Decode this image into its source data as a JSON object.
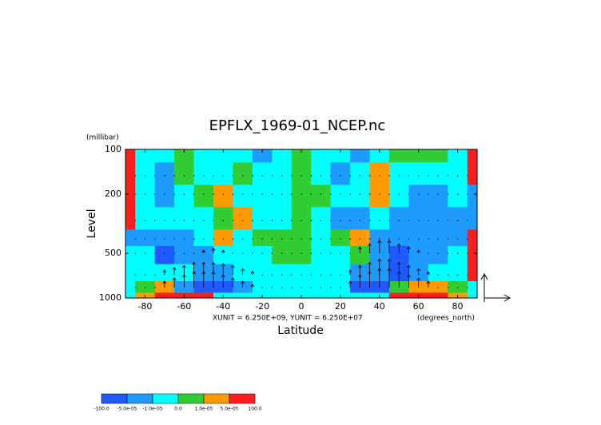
{
  "chart_data": {
    "type": "contour",
    "title": "EPFLX_1969-01_NCEP.nc",
    "x_label": "Latitude",
    "y_label": "Level",
    "y_units": "(millibar)",
    "x_units": "(degrees_north)",
    "annotation": "XUNIT = 6.250E+09, YUNIT = 6.250E+07",
    "xlim": [
      -90,
      90
    ],
    "ylim": [
      1000,
      100
    ],
    "y_log": true,
    "xticks": [
      -80,
      -60,
      -40,
      -20,
      0,
      20,
      40,
      60,
      80
    ],
    "yticks": [
      100,
      200,
      500,
      1000
    ],
    "x": [
      -90,
      -80,
      -70,
      -60,
      -50,
      -40,
      -30,
      -20,
      -10,
      0,
      10,
      20,
      30,
      40,
      50,
      60,
      70,
      80,
      90
    ],
    "y": [
      100,
      150,
      200,
      300,
      400,
      500,
      700,
      850,
      1000
    ],
    "z": [
      [
        7e-05,
        -5e-06,
        -5e-06,
        5e-06,
        -5e-06,
        -5e-06,
        -5e-06,
        -3e-05,
        -5e-06,
        5e-06,
        -5e-06,
        -5e-06,
        -3e-05,
        -5e-06,
        5e-06,
        5e-06,
        5e-06,
        -5e-06,
        7e-05
      ],
      [
        7e-05,
        -5e-06,
        -3e-05,
        5e-06,
        -5e-06,
        -5e-06,
        5e-06,
        -5e-06,
        -5e-06,
        5e-06,
        -5e-06,
        -3e-05,
        -5e-06,
        3e-05,
        -5e-06,
        -5e-06,
        -5e-06,
        -5e-06,
        7e-05
      ],
      [
        7e-05,
        -5e-06,
        -3e-05,
        -5e-06,
        5e-06,
        3e-05,
        -5e-06,
        -5e-06,
        -5e-06,
        5e-06,
        5e-06,
        -5e-06,
        -5e-06,
        3e-05,
        -5e-06,
        -3e-05,
        -3e-05,
        -5e-06,
        -3e-05
      ],
      [
        7e-05,
        -5e-06,
        -5e-06,
        -5e-06,
        -5e-06,
        5e-06,
        3e-05,
        -5e-06,
        -5e-06,
        5e-06,
        -5e-06,
        -3e-05,
        -3e-05,
        -5e-06,
        -3e-05,
        -3e-05,
        -3e-05,
        -3e-05,
        -3e-05
      ],
      [
        -3e-05,
        -3e-05,
        -3e-05,
        -3e-05,
        -5e-06,
        3e-05,
        -5e-06,
        5e-06,
        5e-06,
        5e-06,
        -5e-06,
        5e-06,
        3e-05,
        -3e-05,
        -3e-05,
        -3e-05,
        -3e-05,
        -3e-05,
        7e-05
      ],
      [
        -5e-06,
        -5e-06,
        -7e-05,
        -3e-05,
        -3e-05,
        -5e-06,
        -5e-06,
        -5e-06,
        5e-06,
        5e-06,
        -5e-06,
        -5e-06,
        5e-06,
        -3e-05,
        -7e-05,
        -3e-05,
        -3e-05,
        -5e-06,
        7e-05
      ],
      [
        -5e-06,
        -5e-06,
        -5e-06,
        -5e-06,
        -3e-05,
        -3e-05,
        -5e-06,
        -5e-06,
        -5e-06,
        -5e-06,
        -5e-06,
        -5e-06,
        -3e-05,
        -3e-05,
        -7e-05,
        -3e-05,
        -5e-06,
        -5e-06,
        7e-05
      ],
      [
        -5e-06,
        5e-06,
        3e-05,
        -3e-05,
        -7e-05,
        -7e-05,
        -3e-05,
        -5e-06,
        -5e-06,
        -5e-06,
        -5e-06,
        -5e-06,
        -7e-05,
        -7e-05,
        5e-06,
        3e-05,
        3e-05,
        5e-06,
        -5e-06
      ],
      [
        -5e-06,
        3e-05,
        7e-05,
        7e-05,
        7e-05,
        -5e-06,
        -5e-06,
        -5e-06,
        -5e-06,
        -5e-06,
        -5e-06,
        -5e-06,
        -5e-06,
        -5e-06,
        7e-05,
        7e-05,
        7e-05,
        3e-05,
        -5e-06
      ]
    ],
    "levels": [
      {
        "value": -100,
        "label": "-100.0"
      },
      {
        "value": -5e-05,
        "label": "-5.0e-05"
      },
      {
        "value": -1e-05,
        "label": "-1.0e-05"
      },
      {
        "value": 0,
        "label": "0.0"
      },
      {
        "value": 1e-05,
        "label": "1.0e-05"
      },
      {
        "value": 5e-05,
        "label": "5.0e-05"
      },
      {
        "value": 100,
        "label": "100.0"
      }
    ],
    "colors": [
      "#1e5aff",
      "#1e9bff",
      "#00ffff",
      "#32cd32",
      "#ff9b00",
      "#ff1e1e"
    ],
    "vectors": {
      "x": [
        -85,
        -80,
        -75,
        -70,
        -65,
        -60,
        -55,
        -50,
        -45,
        -40,
        -35,
        -30,
        -25,
        -20,
        -15,
        -10,
        -5,
        0,
        5,
        10,
        15,
        20,
        25,
        30,
        35,
        40,
        45,
        50,
        55,
        60,
        65,
        70,
        75,
        80,
        85
      ],
      "y": [
        100,
        150,
        200,
        300,
        400,
        500,
        700,
        850
      ],
      "v": [
        [
          0,
          0,
          0,
          0,
          0,
          0,
          0,
          0,
          0,
          0,
          0,
          0,
          0,
          0,
          0,
          0,
          0,
          0,
          0,
          0,
          0,
          0,
          0,
          0,
          0,
          0,
          0,
          0,
          0,
          0,
          0,
          0,
          0,
          0,
          0
        ],
        [
          0,
          0,
          0,
          0,
          0,
          0,
          0,
          0,
          0,
          0,
          0,
          0,
          0,
          0,
          0,
          0,
          0,
          0,
          0,
          0,
          0,
          0,
          0,
          0,
          0,
          0,
          0,
          0,
          0,
          0,
          0,
          0,
          0,
          0,
          0
        ],
        [
          0,
          0,
          0,
          0,
          0,
          0,
          0,
          0,
          0,
          0,
          0,
          0,
          0,
          0,
          0,
          0,
          0,
          0,
          0,
          0,
          0,
          0,
          0,
          0,
          0,
          0,
          0,
          0,
          0,
          0,
          0,
          0,
          0,
          0,
          0
        ],
        [
          0,
          0,
          0,
          0,
          0,
          0,
          0,
          0,
          0,
          0,
          0,
          0,
          0,
          0,
          0,
          0,
          0,
          0,
          0,
          0,
          0,
          0,
          0,
          0,
          0,
          0,
          0,
          0,
          0,
          0,
          0,
          0,
          0,
          0,
          0
        ],
        [
          0,
          0,
          0,
          0,
          0,
          0,
          0,
          0,
          0,
          0,
          0,
          0,
          0,
          0,
          0,
          0,
          0,
          0,
          0,
          0,
          0,
          0,
          0,
          0,
          0,
          0,
          0,
          0,
          0,
          0,
          0,
          0,
          0,
          0,
          0
        ],
        [
          0,
          0,
          0,
          0,
          0,
          0,
          0,
          0.5,
          0.8,
          0.5,
          0,
          0,
          0,
          0,
          0,
          0,
          0,
          0,
          0,
          0,
          0,
          0,
          0,
          1,
          1.5,
          2,
          2,
          1.5,
          1,
          0.5,
          0,
          0,
          0,
          0,
          0
        ],
        [
          0,
          0,
          0,
          0.8,
          1.2,
          1.5,
          2,
          2,
          2,
          1.8,
          1.5,
          1,
          0.6,
          0,
          0,
          0,
          0,
          0,
          0,
          0,
          0,
          0,
          0.8,
          1.5,
          2,
          2.5,
          2.5,
          2,
          1.5,
          1,
          0.5,
          0,
          0,
          0,
          0
        ],
        [
          0,
          0,
          0,
          1,
          1.5,
          2,
          2.5,
          2.5,
          2.5,
          2,
          1.5,
          1,
          0.5,
          0,
          0,
          0,
          0,
          0,
          0,
          0,
          0,
          0,
          1,
          2,
          2.5,
          3,
          3,
          2.5,
          2,
          1.5,
          1,
          0,
          0,
          0,
          0
        ]
      ]
    }
  }
}
